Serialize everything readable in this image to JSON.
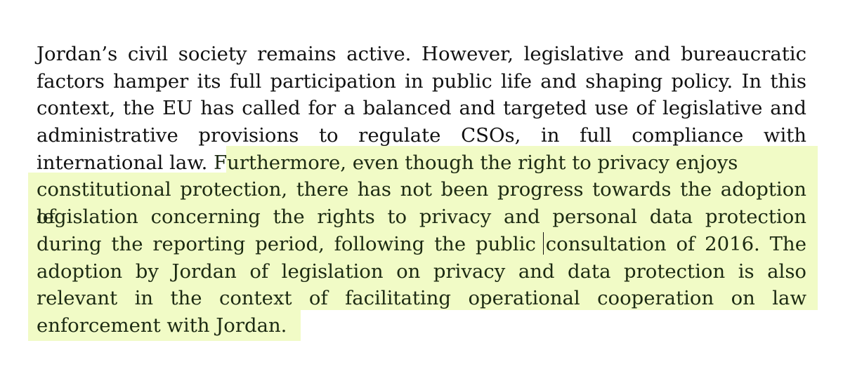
{
  "document": {
    "highlight_color": "#f1fbc6",
    "text_color": "#111111",
    "lines": [
      {
        "plain": "Jordan’s civil society remains active. However, legislative and bureaucratic",
        "highlight": ""
      },
      {
        "plain": "factors hamper its full participation in public life and shaping policy. In this",
        "highlight": ""
      },
      {
        "plain": "context, the EU has called for a balanced and targeted use of legislative and",
        "highlight": ""
      },
      {
        "plain": "administrative provisions to regulate CSOs, in full compliance with",
        "highlight": ""
      },
      {
        "plain": "international law. ",
        "highlight": "Furthermore, even though the right to privacy enjoys"
      },
      {
        "plain": "",
        "highlight": "constitutional protection, there has not been progress towards the adoption of"
      },
      {
        "plain": "",
        "highlight": "legislation concerning the rights to privacy and personal data protection"
      },
      {
        "plain": "",
        "highlight": "during the reporting period, following the public consultation of 2016. The"
      },
      {
        "plain": "",
        "highlight": "adoption by Jordan of legislation on privacy and data protection is also"
      },
      {
        "plain": "",
        "highlight": "relevant in the context of facilitating operational cooperation on law"
      },
      {
        "plain": "",
        "highlight": "enforcement with Jordan."
      }
    ]
  }
}
